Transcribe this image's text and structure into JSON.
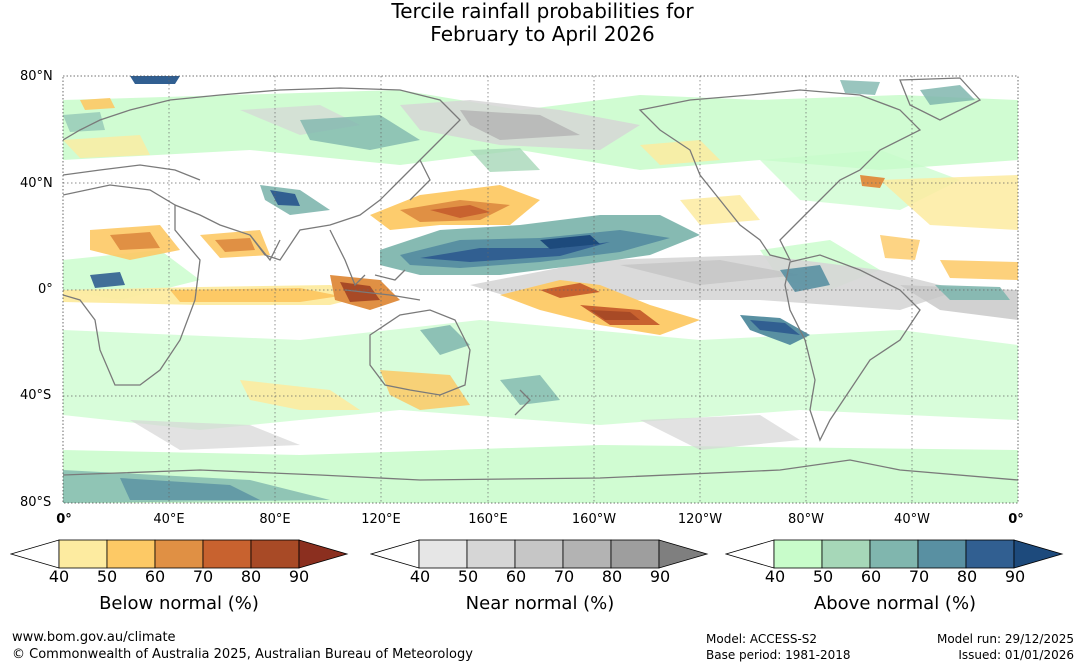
{
  "title": {
    "line1": "Tercile rainfall probabilities for",
    "line2": "February to April 2026"
  },
  "map": {
    "lat_labels": [
      "80°N",
      "40°N",
      "0°",
      "40°S",
      "80°S"
    ],
    "lon_labels": [
      "0°",
      "40°E",
      "80°E",
      "120°E",
      "160°E",
      "160°W",
      "120°W",
      "80°W",
      "40°W",
      "0°"
    ]
  },
  "legends": [
    {
      "title": "Below normal (%)",
      "ticks": [
        "40",
        "50",
        "60",
        "70",
        "80",
        "90"
      ],
      "colors": [
        "#ffffff",
        "#fdeba0",
        "#fdc965",
        "#e09044",
        "#c8622f",
        "#a84a26",
        "#8b2f1f"
      ]
    },
    {
      "title": "Near normal (%)",
      "ticks": [
        "40",
        "50",
        "60",
        "70",
        "80",
        "90"
      ],
      "colors": [
        "#ffffff",
        "#e6e6e6",
        "#d6d6d6",
        "#c6c6c6",
        "#b3b3b3",
        "#9e9e9e",
        "#7f7f7f"
      ]
    },
    {
      "title": "Above normal (%)",
      "ticks": [
        "40",
        "50",
        "60",
        "70",
        "80",
        "90"
      ],
      "colors": [
        "#ffffff",
        "#c8fcca",
        "#a6d7b8",
        "#80b6ae",
        "#5990a2",
        "#315f91",
        "#1d4a7c"
      ]
    }
  ],
  "footer": {
    "website": "www.bom.gov.au/climate",
    "copyright": "© Commonwealth of Australia 2025, Australian Bureau of Meteorology",
    "model": "Model: ACCESS-S2",
    "base_period": "Base period: 1981-2018",
    "model_run": "Model run: 29/12/2025",
    "issued": "Issued: 01/01/2026"
  }
}
